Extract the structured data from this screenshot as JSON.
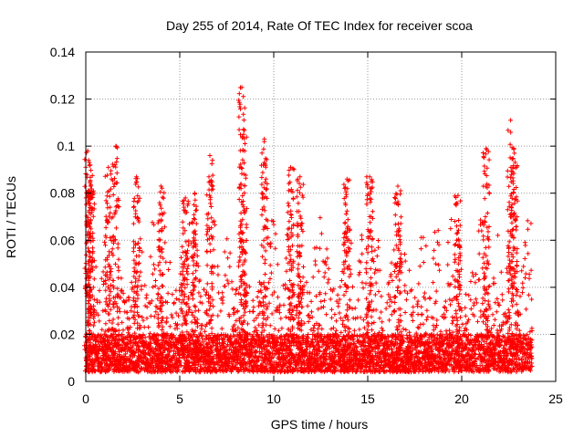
{
  "chart_data": {
    "type": "scatter",
    "title": "Day 255 of 2014, Rate Of TEC Index for receiver scoa",
    "xlabel": "GPS time / hours",
    "ylabel": "ROTI / TECUs",
    "xlim": [
      0,
      25
    ],
    "ylim": [
      0,
      0.14
    ],
    "xticks": [
      "0",
      "5",
      "10",
      "15",
      "20",
      "25"
    ],
    "yticks": [
      "0",
      "0.02",
      "0.04",
      "0.06",
      "0.08",
      "0.1",
      "0.12",
      "0.14"
    ],
    "grid": true,
    "marker": "+",
    "colors": {
      "series": "#ff0000",
      "grid": "#999999",
      "axes": "#000000"
    },
    "series": [
      {
        "x_range": [
          0,
          23.75
        ],
        "baseline_range": [
          0.004,
          0.02
        ],
        "typical_peak": 0.07,
        "peaks": [
          {
            "x": 0.1,
            "y": 0.098
          },
          {
            "x": 0.2,
            "y": 0.092
          },
          {
            "x": 0.3,
            "y": 0.081
          },
          {
            "x": 1.2,
            "y": 0.091
          },
          {
            "x": 1.6,
            "y": 0.1
          },
          {
            "x": 2.7,
            "y": 0.087
          },
          {
            "x": 4.0,
            "y": 0.083
          },
          {
            "x": 5.3,
            "y": 0.078
          },
          {
            "x": 5.8,
            "y": 0.08
          },
          {
            "x": 6.6,
            "y": 0.096
          },
          {
            "x": 8.3,
            "y": 0.125
          },
          {
            "x": 8.4,
            "y": 0.105
          },
          {
            "x": 9.5,
            "y": 0.103
          },
          {
            "x": 10.9,
            "y": 0.091
          },
          {
            "x": 11.4,
            "y": 0.087
          },
          {
            "x": 13.9,
            "y": 0.086
          },
          {
            "x": 15.1,
            "y": 0.087
          },
          {
            "x": 16.6,
            "y": 0.083
          },
          {
            "x": 19.8,
            "y": 0.079
          },
          {
            "x": 21.3,
            "y": 0.099
          },
          {
            "x": 22.6,
            "y": 0.111
          },
          {
            "x": 22.8,
            "y": 0.097
          }
        ]
      }
    ]
  }
}
